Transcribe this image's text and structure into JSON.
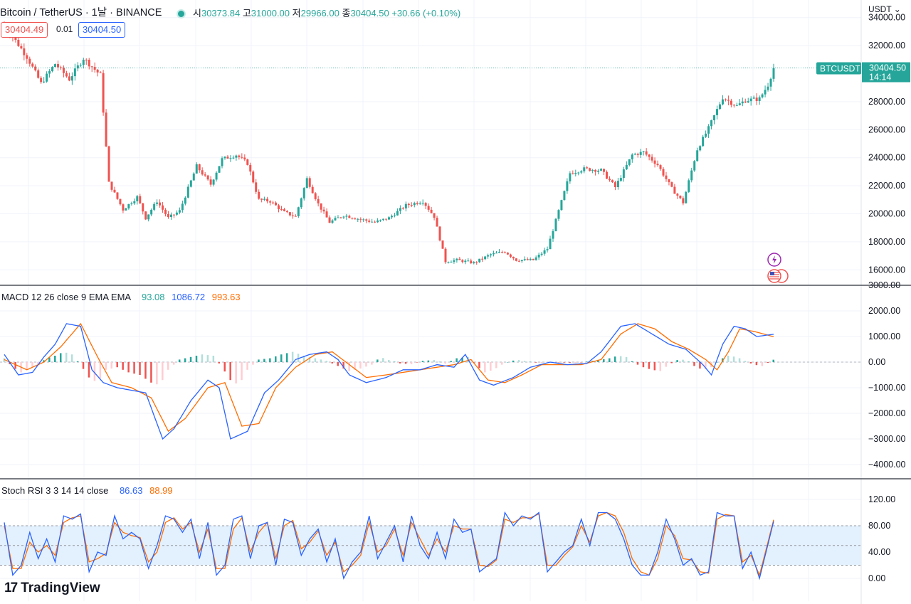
{
  "header": {
    "title": "Bitcoin / TetherUS · 1날 · BINANCE",
    "open_label": "시",
    "open": "30373.84",
    "high_label": "고",
    "high": "31000.00",
    "low_label": "저",
    "low": "29966.00",
    "close_label": "종",
    "close": "30404.50",
    "change": "+30.66 (+0.10%)",
    "bid": "30404.49",
    "spread": "0.01",
    "ask": "30404.50",
    "currency": "USDT"
  },
  "price_axis": {
    "ticks": [
      "34000.00",
      "32000.00",
      "28000.00",
      "26000.00",
      "24000.00",
      "22000.00",
      "20000.00",
      "18000.00",
      "16000.00"
    ],
    "tick_values": [
      34000,
      32000,
      28000,
      26000,
      24000,
      22000,
      20000,
      18000,
      16000
    ],
    "last_symbol": "BTCUSDT",
    "last_price": "30404.50",
    "countdown": "14:14",
    "last_value": 30404.5
  },
  "macd": {
    "title": "MACD 12 26 close 9 EMA EMA",
    "hist_value": "93.08",
    "macd_value": "1086.72",
    "signal_value": "993.63",
    "ticks": [
      "3000.00",
      "2000.00",
      "1000.00",
      "0.00",
      "−1000.00",
      "−2000.00",
      "−3000.00",
      "−4000.00"
    ],
    "tick_values": [
      3000,
      2000,
      1000,
      0,
      -1000,
      -2000,
      -3000,
      -4000
    ]
  },
  "stoch": {
    "title": "Stoch RSI 3 3 14 14 close",
    "k_value": "86.63",
    "d_value": "88.99",
    "ticks": [
      "120.00",
      "80.00",
      "40.00",
      "0.00"
    ],
    "tick_values": [
      120,
      80,
      40,
      0
    ]
  },
  "brand": {
    "name": "TradingView",
    "mark": "17"
  },
  "colors": {
    "up": "#26a69a",
    "down": "#ef5350",
    "macd": "#2962ff",
    "signal": "#ff6d00",
    "band": "#e3f0fd",
    "grid": "#f0f3fa"
  },
  "chart_data": {
    "type": "line",
    "title": "Bitcoin / TetherUS · 1날 · BINANCE",
    "xlabel": "",
    "ylabel": "",
    "price_ylim": [
      15000,
      35000
    ],
    "close_path": [
      [
        0,
        33500
      ],
      [
        8,
        31200
      ],
      [
        13,
        29300
      ],
      [
        18,
        30700
      ],
      [
        23,
        29600
      ],
      [
        28,
        31100
      ],
      [
        34,
        29900
      ],
      [
        37,
        22200
      ],
      [
        42,
        20300
      ],
      [
        47,
        21200
      ],
      [
        50,
        19700
      ],
      [
        54,
        20900
      ],
      [
        58,
        19700
      ],
      [
        62,
        20200
      ],
      [
        68,
        23400
      ],
      [
        73,
        22100
      ],
      [
        77,
        23900
      ],
      [
        82,
        24200
      ],
      [
        86,
        23600
      ],
      [
        90,
        21000
      ],
      [
        94,
        20900
      ],
      [
        99,
        20100
      ],
      [
        103,
        19800
      ],
      [
        107,
        22500
      ],
      [
        111,
        20700
      ],
      [
        115,
        19400
      ],
      [
        120,
        19900
      ],
      [
        126,
        19600
      ],
      [
        131,
        19400
      ],
      [
        136,
        19700
      ],
      [
        142,
        20600
      ],
      [
        148,
        20900
      ],
      [
        152,
        19800
      ],
      [
        156,
        16600
      ],
      [
        160,
        16700
      ],
      [
        166,
        16500
      ],
      [
        172,
        17100
      ],
      [
        177,
        17300
      ],
      [
        181,
        16700
      ],
      [
        187,
        16700
      ],
      [
        192,
        17500
      ],
      [
        196,
        20200
      ],
      [
        200,
        22900
      ],
      [
        205,
        23200
      ],
      [
        211,
        23100
      ],
      [
        216,
        21900
      ],
      [
        222,
        24200
      ],
      [
        226,
        24400
      ],
      [
        231,
        23500
      ],
      [
        236,
        21800
      ],
      [
        240,
        20800
      ],
      [
        245,
        24600
      ],
      [
        249,
        26100
      ],
      [
        254,
        28300
      ],
      [
        259,
        27700
      ],
      [
        262,
        28100
      ],
      [
        267,
        28200
      ],
      [
        270,
        29200
      ],
      [
        272,
        30404.5
      ]
    ],
    "macd_ylim": [
      -4500,
      3000
    ],
    "macd_path": [
      [
        0,
        300
      ],
      [
        5,
        -500
      ],
      [
        10,
        -400
      ],
      [
        14,
        200
      ],
      [
        18,
        700
      ],
      [
        22,
        1500
      ],
      [
        27,
        1400
      ],
      [
        31,
        -300
      ],
      [
        35,
        -800
      ],
      [
        40,
        -1000
      ],
      [
        45,
        -1100
      ],
      [
        50,
        -1200
      ],
      [
        56,
        -3000
      ],
      [
        60,
        -2600
      ],
      [
        66,
        -1500
      ],
      [
        72,
        -700
      ],
      [
        76,
        -1000
      ],
      [
        80,
        -3000
      ],
      [
        86,
        -2700
      ],
      [
        92,
        -1200
      ],
      [
        97,
        -700
      ],
      [
        103,
        100
      ],
      [
        108,
        300
      ],
      [
        114,
        400
      ],
      [
        118,
        100
      ],
      [
        122,
        -500
      ],
      [
        128,
        -800
      ],
      [
        135,
        -600
      ],
      [
        141,
        -300
      ],
      [
        147,
        -300
      ],
      [
        153,
        -100
      ],
      [
        159,
        -200
      ],
      [
        163,
        300
      ],
      [
        168,
        -700
      ],
      [
        173,
        -900
      ],
      [
        180,
        -600
      ],
      [
        186,
        -200
      ],
      [
        193,
        0
      ],
      [
        199,
        -100
      ],
      [
        206,
        -50
      ],
      [
        211,
        400
      ],
      [
        218,
        1400
      ],
      [
        223,
        1500
      ],
      [
        229,
        1100
      ],
      [
        235,
        700
      ],
      [
        241,
        500
      ],
      [
        247,
        -100
      ],
      [
        250,
        -500
      ],
      [
        254,
        700
      ],
      [
        258,
        1400
      ],
      [
        262,
        1300
      ],
      [
        266,
        1000
      ],
      [
        272,
        1086.72
      ]
    ],
    "signal_path": [
      [
        0,
        100
      ],
      [
        8,
        -300
      ],
      [
        14,
        0
      ],
      [
        20,
        600
      ],
      [
        27,
        1500
      ],
      [
        33,
        200
      ],
      [
        38,
        -800
      ],
      [
        45,
        -1000
      ],
      [
        52,
        -1400
      ],
      [
        58,
        -2700
      ],
      [
        64,
        -2200
      ],
      [
        72,
        -1000
      ],
      [
        78,
        -800
      ],
      [
        84,
        -2500
      ],
      [
        90,
        -2400
      ],
      [
        96,
        -1000
      ],
      [
        103,
        -200
      ],
      [
        110,
        300
      ],
      [
        116,
        400
      ],
      [
        122,
        -100
      ],
      [
        128,
        -600
      ],
      [
        135,
        -500
      ],
      [
        141,
        -400
      ],
      [
        147,
        -300
      ],
      [
        153,
        -200
      ],
      [
        159,
        -100
      ],
      [
        165,
        100
      ],
      [
        171,
        -700
      ],
      [
        177,
        -800
      ],
      [
        183,
        -500
      ],
      [
        190,
        -100
      ],
      [
        197,
        -100
      ],
      [
        204,
        -100
      ],
      [
        211,
        100
      ],
      [
        218,
        1100
      ],
      [
        224,
        1500
      ],
      [
        230,
        1300
      ],
      [
        236,
        800
      ],
      [
        242,
        500
      ],
      [
        248,
        100
      ],
      [
        252,
        -300
      ],
      [
        256,
        400
      ],
      [
        260,
        1300
      ],
      [
        265,
        1200
      ],
      [
        272,
        993.63
      ]
    ],
    "macd_hist": [
      [
        0,
        150
      ],
      [
        3,
        -200
      ],
      [
        6,
        -400
      ],
      [
        9,
        -250
      ],
      [
        12,
        -80
      ],
      [
        15,
        150
      ],
      [
        18,
        250
      ],
      [
        21,
        400
      ],
      [
        24,
        300
      ],
      [
        27,
        -100
      ],
      [
        30,
        -600
      ],
      [
        33,
        -800
      ],
      [
        36,
        -300
      ],
      [
        40,
        -200
      ],
      [
        44,
        -400
      ],
      [
        48,
        -500
      ],
      [
        52,
        -800
      ],
      [
        55,
        -900
      ],
      [
        58,
        -300
      ],
      [
        62,
        100
      ],
      [
        66,
        200
      ],
      [
        70,
        300
      ],
      [
        74,
        250
      ],
      [
        77,
        -200
      ],
      [
        80,
        -700
      ],
      [
        83,
        -900
      ],
      [
        86,
        -300
      ],
      [
        90,
        100
      ],
      [
        94,
        150
      ],
      [
        98,
        300
      ],
      [
        102,
        400
      ],
      [
        106,
        250
      ],
      [
        110,
        150
      ],
      [
        114,
        50
      ],
      [
        118,
        -150
      ],
      [
        122,
        -350
      ],
      [
        126,
        -250
      ],
      [
        130,
        -100
      ],
      [
        133,
        200
      ],
      [
        136,
        80
      ],
      [
        140,
        -50
      ],
      [
        144,
        -80
      ],
      [
        148,
        50
      ],
      [
        152,
        80
      ],
      [
        156,
        -60
      ],
      [
        160,
        150
      ],
      [
        164,
        200
      ],
      [
        167,
        -150
      ],
      [
        170,
        -400
      ],
      [
        173,
        -300
      ],
      [
        176,
        -100
      ],
      [
        179,
        50
      ],
      [
        182,
        80
      ],
      [
        185,
        30
      ],
      [
        188,
        -20
      ],
      [
        191,
        -30
      ],
      [
        194,
        10
      ],
      [
        198,
        -20
      ],
      [
        202,
        -30
      ],
      [
        206,
        20
      ],
      [
        210,
        80
      ],
      [
        214,
        150
      ],
      [
        217,
        250
      ],
      [
        220,
        200
      ],
      [
        223,
        -50
      ],
      [
        226,
        -200
      ],
      [
        229,
        -300
      ],
      [
        232,
        -350
      ],
      [
        235,
        -100
      ],
      [
        238,
        80
      ],
      [
        241,
        100
      ],
      [
        244,
        -150
      ],
      [
        247,
        -300
      ],
      [
        250,
        -200
      ],
      [
        253,
        100
      ],
      [
        256,
        250
      ],
      [
        259,
        200
      ],
      [
        262,
        50
      ],
      [
        265,
        -100
      ],
      [
        268,
        -150
      ],
      [
        272,
        93.08
      ]
    ],
    "stoch_ylim": [
      -10,
      125
    ],
    "stoch_k": [
      [
        0,
        85
      ],
      [
        3,
        5
      ],
      [
        6,
        20
      ],
      [
        9,
        70
      ],
      [
        12,
        30
      ],
      [
        15,
        60
      ],
      [
        18,
        25
      ],
      [
        21,
        95
      ],
      [
        24,
        90
      ],
      [
        27,
        98
      ],
      [
        30,
        10
      ],
      [
        33,
        40
      ],
      [
        36,
        35
      ],
      [
        39,
        95
      ],
      [
        42,
        60
      ],
      [
        45,
        70
      ],
      [
        48,
        60
      ],
      [
        51,
        15
      ],
      [
        54,
        50
      ],
      [
        57,
        95
      ],
      [
        60,
        90
      ],
      [
        63,
        70
      ],
      [
        66,
        90
      ],
      [
        69,
        30
      ],
      [
        72,
        85
      ],
      [
        75,
        5
      ],
      [
        78,
        20
      ],
      [
        81,
        90
      ],
      [
        84,
        95
      ],
      [
        87,
        30
      ],
      [
        90,
        80
      ],
      [
        93,
        85
      ],
      [
        96,
        20
      ],
      [
        99,
        90
      ],
      [
        102,
        85
      ],
      [
        105,
        35
      ],
      [
        108,
        60
      ],
      [
        111,
        75
      ],
      [
        114,
        25
      ],
      [
        117,
        60
      ],
      [
        120,
        0
      ],
      [
        123,
        25
      ],
      [
        126,
        40
      ],
      [
        129,
        95
      ],
      [
        132,
        30
      ],
      [
        135,
        55
      ],
      [
        138,
        80
      ],
      [
        141,
        25
      ],
      [
        144,
        95
      ],
      [
        147,
        50
      ],
      [
        150,
        30
      ],
      [
        153,
        70
      ],
      [
        156,
        30
      ],
      [
        159,
        90
      ],
      [
        162,
        70
      ],
      [
        165,
        75
      ],
      [
        168,
        10
      ],
      [
        171,
        20
      ],
      [
        174,
        30
      ],
      [
        177,
        100
      ],
      [
        180,
        80
      ],
      [
        183,
        95
      ],
      [
        186,
        90
      ],
      [
        189,
        100
      ],
      [
        192,
        10
      ],
      [
        195,
        25
      ],
      [
        198,
        40
      ],
      [
        201,
        50
      ],
      [
        204,
        90
      ],
      [
        207,
        50
      ],
      [
        210,
        100
      ],
      [
        213,
        100
      ],
      [
        216,
        90
      ],
      [
        219,
        60
      ],
      [
        222,
        20
      ],
      [
        225,
        5
      ],
      [
        228,
        5
      ],
      [
        231,
        40
      ],
      [
        234,
        90
      ],
      [
        237,
        60
      ],
      [
        240,
        20
      ],
      [
        243,
        30
      ],
      [
        246,
        5
      ],
      [
        249,
        10
      ],
      [
        252,
        100
      ],
      [
        255,
        95
      ],
      [
        258,
        95
      ],
      [
        261,
        15
      ],
      [
        264,
        40
      ],
      [
        267,
        0
      ],
      [
        272,
        86.63
      ]
    ],
    "stoch_d": [
      [
        0,
        80
      ],
      [
        3,
        15
      ],
      [
        6,
        15
      ],
      [
        9,
        55
      ],
      [
        12,
        40
      ],
      [
        15,
        50
      ],
      [
        18,
        35
      ],
      [
        21,
        85
      ],
      [
        24,
        92
      ],
      [
        27,
        95
      ],
      [
        30,
        25
      ],
      [
        33,
        30
      ],
      [
        36,
        38
      ],
      [
        39,
        85
      ],
      [
        42,
        70
      ],
      [
        45,
        65
      ],
      [
        48,
        62
      ],
      [
        51,
        25
      ],
      [
        54,
        40
      ],
      [
        57,
        85
      ],
      [
        60,
        92
      ],
      [
        63,
        75
      ],
      [
        66,
        85
      ],
      [
        69,
        40
      ],
      [
        72,
        75
      ],
      [
        75,
        15
      ],
      [
        78,
        15
      ],
      [
        81,
        75
      ],
      [
        84,
        92
      ],
      [
        87,
        40
      ],
      [
        90,
        70
      ],
      [
        93,
        85
      ],
      [
        96,
        30
      ],
      [
        99,
        80
      ],
      [
        102,
        88
      ],
      [
        105,
        45
      ],
      [
        108,
        55
      ],
      [
        111,
        72
      ],
      [
        114,
        35
      ],
      [
        117,
        55
      ],
      [
        120,
        10
      ],
      [
        123,
        20
      ],
      [
        126,
        35
      ],
      [
        129,
        85
      ],
      [
        132,
        40
      ],
      [
        135,
        50
      ],
      [
        138,
        75
      ],
      [
        141,
        35
      ],
      [
        144,
        85
      ],
      [
        147,
        60
      ],
      [
        150,
        35
      ],
      [
        153,
        60
      ],
      [
        156,
        40
      ],
      [
        159,
        80
      ],
      [
        162,
        75
      ],
      [
        165,
        75
      ],
      [
        168,
        20
      ],
      [
        171,
        18
      ],
      [
        174,
        28
      ],
      [
        177,
        90
      ],
      [
        180,
        85
      ],
      [
        183,
        92
      ],
      [
        186,
        92
      ],
      [
        189,
        98
      ],
      [
        192,
        20
      ],
      [
        195,
        20
      ],
      [
        198,
        35
      ],
      [
        201,
        48
      ],
      [
        204,
        80
      ],
      [
        207,
        55
      ],
      [
        210,
        95
      ],
      [
        213,
        100
      ],
      [
        216,
        95
      ],
      [
        219,
        70
      ],
      [
        222,
        30
      ],
      [
        225,
        10
      ],
      [
        228,
        5
      ],
      [
        231,
        30
      ],
      [
        234,
        80
      ],
      [
        237,
        65
      ],
      [
        240,
        30
      ],
      [
        243,
        28
      ],
      [
        246,
        10
      ],
      [
        249,
        8
      ],
      [
        252,
        90
      ],
      [
        255,
        97
      ],
      [
        258,
        95
      ],
      [
        261,
        25
      ],
      [
        264,
        35
      ],
      [
        267,
        5
      ],
      [
        272,
        88.99
      ]
    ],
    "stoch_band": [
      20,
      80
    ],
    "x_count": 273
  }
}
